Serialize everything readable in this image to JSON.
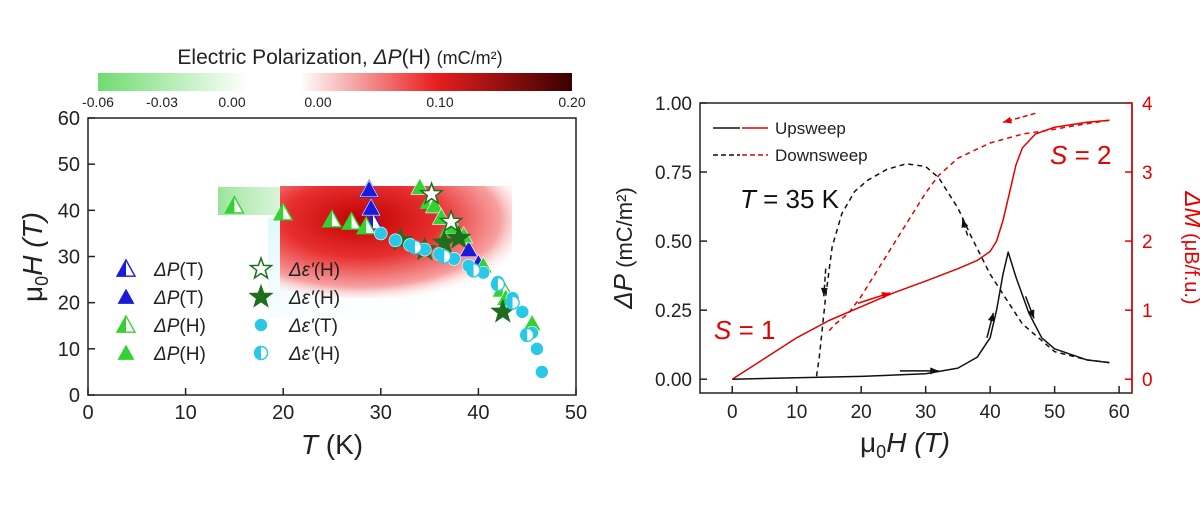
{
  "colorbar": {
    "title_pre": "Electric Polarization, ",
    "title_sym": "ΔP",
    "title_post": "(H) ",
    "title_unit": "(mC/m²)",
    "ticks": [
      "-0.06",
      "-0.03",
      "0.00",
      "0.00",
      "0.10",
      "0.20"
    ],
    "colors": {
      "negative": "#6fdc6f",
      "positive_mid": "#e81e1e",
      "positive_max": "#3a0000"
    }
  },
  "chart_data": [
    {
      "type": "scatter",
      "title": "",
      "xlabel_sym": "T",
      "xlabel_unit": " (K)",
      "ylabel_sym": "μ",
      "ylabel_sub": "0",
      "ylabel_rest": "H (T)",
      "xlim": [
        0,
        50
      ],
      "ylim": [
        0,
        60
      ],
      "xticks": [
        "0",
        "10",
        "20",
        "30",
        "40",
        "50"
      ],
      "yticks": [
        "0",
        "10",
        "20",
        "30",
        "40",
        "50",
        "60"
      ],
      "legend_position": "bottom-left",
      "legend": [
        {
          "sym": "ΔP",
          "arg": "(T)",
          "marker": "triangle-half",
          "color": "#1a1adc"
        },
        {
          "sym": "ΔP",
          "arg": "(T)",
          "marker": "triangle",
          "color": "#1a1adc"
        },
        {
          "sym": "ΔP",
          "arg": "(H)",
          "marker": "triangle-half",
          "color": "#32d232"
        },
        {
          "sym": "ΔP",
          "arg": "(H)",
          "marker": "triangle",
          "color": "#32d232"
        },
        {
          "sym": "Δε'",
          "arg": "(H)",
          "marker": "star-open",
          "color": "#1e6e1e"
        },
        {
          "sym": "Δε'",
          "arg": "(H)",
          "marker": "star",
          "color": "#1e6e1e"
        },
        {
          "sym": "Δε'",
          "arg": "(T)",
          "marker": "circle",
          "color": "#28c8e6"
        },
        {
          "sym": "Δε'",
          "arg": "(H)",
          "marker": "circle-half",
          "color": "#28c8e6"
        }
      ],
      "series": [
        {
          "marker": "triangle-half",
          "color": "#1a1adc",
          "x": [
            28.8,
            29.0,
            29.2
          ],
          "y": [
            44.5,
            40.5,
            37.5
          ]
        },
        {
          "marker": "triangle",
          "color": "#1a1adc",
          "x": [
            28.8,
            29.0,
            39.0,
            40.0
          ],
          "y": [
            44.5,
            40.5,
            31.5,
            28.5
          ]
        },
        {
          "marker": "triangle-half",
          "color": "#32d232",
          "x": [
            15.0,
            20.0,
            25.0,
            27.0,
            28.5,
            35.0,
            37.0,
            42.5
          ],
          "y": [
            41.0,
            39.5,
            38.0,
            37.5,
            36.5,
            42.0,
            36.0,
            23.0
          ]
        },
        {
          "marker": "triangle",
          "color": "#32d232",
          "x": [
            34.0,
            35.5,
            36.2,
            37.5,
            38.5,
            40.5,
            42.8,
            45.5
          ],
          "y": [
            45.0,
            41.0,
            38.5,
            36.5,
            34.5,
            28.0,
            21.0,
            15.5
          ]
        },
        {
          "marker": "star-open",
          "color": "#1e6e1e",
          "x": [
            35.2,
            37.2
          ],
          "y": [
            43.5,
            37.5
          ]
        },
        {
          "marker": "star",
          "color": "#1e6e1e",
          "x": [
            32.0,
            34.5,
            36.5,
            38.0,
            42.5
          ],
          "y": [
            33.5,
            31.5,
            33.0,
            34.0,
            18.0
          ]
        },
        {
          "marker": "circle",
          "color": "#28c8e6",
          "x": [
            30.0,
            31.5,
            33.0,
            34.5,
            36.0,
            37.5,
            39.0,
            40.5,
            42.0,
            43.5,
            44.5,
            45.5,
            46.0,
            46.5
          ],
          "y": [
            35.0,
            33.5,
            32.5,
            31.5,
            30.5,
            29.5,
            28.0,
            26.5,
            24.5,
            21.0,
            18.0,
            13.5,
            10.0,
            5.0
          ]
        },
        {
          "marker": "circle-half",
          "color": "#28c8e6",
          "x": [
            33.5,
            36.5,
            39.5,
            42.0,
            43.5,
            45.0
          ],
          "y": [
            32.0,
            30.0,
            27.0,
            24.0,
            20.0,
            13.0
          ]
        }
      ]
    },
    {
      "type": "line",
      "title": "",
      "xlabel_sym": "μ",
      "xlabel_sub": "0",
      "xlabel_rest": "H (T)",
      "ylabel_sym": "ΔP",
      "ylabel_unit": " (mC/m²)",
      "y2label_sym": "ΔM",
      "y2label_unit": " (μB/f.u.)",
      "xlim": [
        -5,
        62
      ],
      "ylim": [
        -0.05,
        1.0
      ],
      "y2lim": [
        -0.2,
        4.0
      ],
      "xticks": [
        "0",
        "10",
        "20",
        "30",
        "40",
        "50",
        "60"
      ],
      "yticks": [
        "0.00",
        "0.25",
        "0.50",
        "0.75",
        "1.00"
      ],
      "y2ticks": [
        "0",
        "1",
        "2",
        "3",
        "4"
      ],
      "legend_position": "top-left",
      "legend": [
        {
          "label": "Upsweep",
          "style": "solid"
        },
        {
          "label": "Downsweep",
          "style": "dashed"
        }
      ],
      "annotation_T": {
        "sym": "T",
        "text": " = 35 K"
      },
      "annotation_S1": {
        "sym": "S",
        "text": " = 1"
      },
      "annotation_S2": {
        "sym": "S",
        "text": " = 2"
      },
      "series": [
        {
          "quantity": "ΔP",
          "sweep": "up",
          "color": "#111111",
          "x": [
            0,
            10,
            20,
            30,
            35,
            38,
            40,
            41,
            42,
            42.8,
            44,
            46,
            48,
            50,
            55,
            58.5
          ],
          "y": [
            0,
            0.005,
            0.01,
            0.02,
            0.04,
            0.08,
            0.15,
            0.25,
            0.38,
            0.46,
            0.37,
            0.24,
            0.15,
            0.11,
            0.07,
            0.06
          ]
        },
        {
          "quantity": "ΔP",
          "sweep": "down",
          "color": "#111111",
          "x": [
            58.5,
            55,
            50,
            45,
            40,
            37,
            35,
            32,
            30,
            27,
            24,
            21,
            19,
            17,
            15.5,
            14.5,
            13.5,
            13
          ],
          "y": [
            0.06,
            0.07,
            0.1,
            0.2,
            0.38,
            0.52,
            0.62,
            0.73,
            0.77,
            0.78,
            0.76,
            0.72,
            0.68,
            0.6,
            0.48,
            0.3,
            0.08,
            0.0
          ]
        },
        {
          "quantity": "ΔM",
          "sweep": "up",
          "color": "#e60000",
          "x": [
            0,
            5,
            10,
            15,
            20,
            25,
            30,
            35,
            38,
            40,
            41,
            42,
            43,
            44,
            45,
            47,
            50,
            55,
            58.5
          ],
          "y": [
            0,
            0.3,
            0.6,
            0.85,
            1.05,
            1.25,
            1.42,
            1.6,
            1.72,
            1.85,
            2.0,
            2.3,
            2.7,
            3.1,
            3.35,
            3.55,
            3.65,
            3.72,
            3.75
          ]
        },
        {
          "quantity": "ΔM",
          "sweep": "down",
          "color": "#e60000",
          "x": [
            58.5,
            55,
            50,
            45,
            40,
            35,
            32,
            30,
            28,
            25,
            22,
            20,
            18,
            16,
            15
          ],
          "y": [
            3.75,
            3.7,
            3.62,
            3.55,
            3.42,
            3.2,
            2.95,
            2.7,
            2.4,
            1.95,
            1.5,
            1.2,
            0.95,
            0.8,
            0.7
          ]
        }
      ]
    }
  ]
}
